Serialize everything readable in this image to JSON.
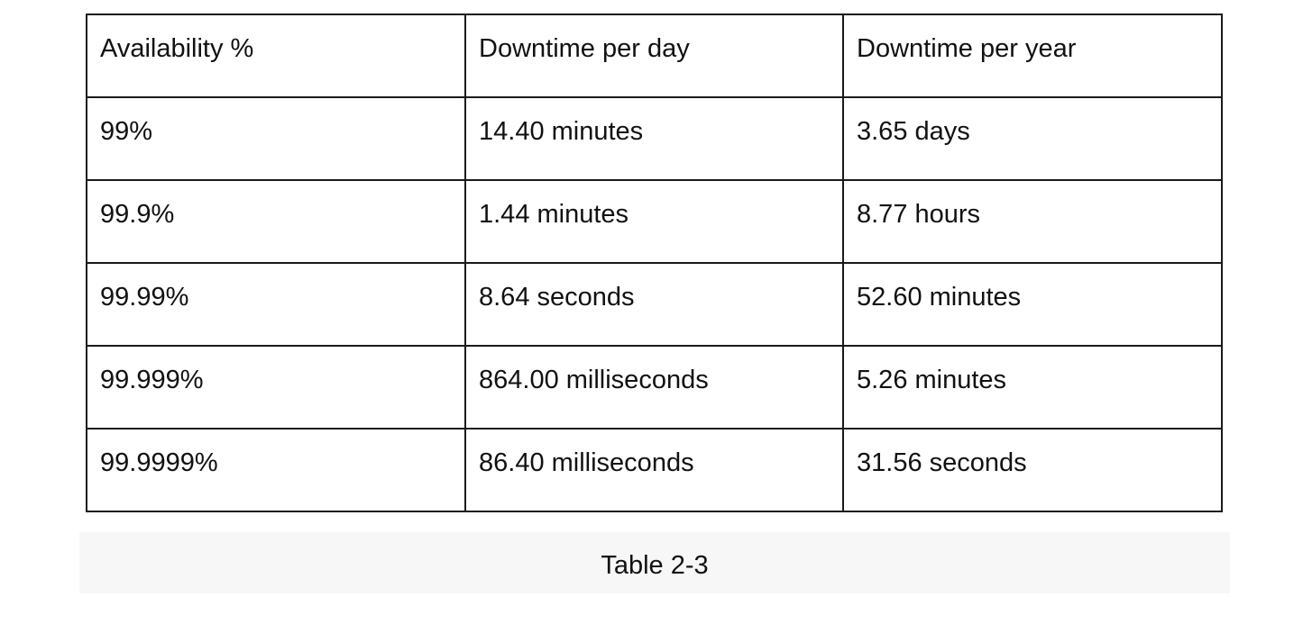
{
  "table": {
    "headers": [
      "Availability %",
      "Downtime per day",
      "Downtime per year"
    ],
    "rows": [
      [
        "99%",
        "14.40 minutes",
        "3.65 days"
      ],
      [
        "99.9%",
        "1.44 minutes",
        "8.77 hours"
      ],
      [
        "99.99%",
        "8.64 seconds",
        "52.60 minutes"
      ],
      [
        "99.999%",
        "864.00 milliseconds",
        "5.26 minutes"
      ],
      [
        "99.9999%",
        "86.40 milliseconds",
        "31.56 seconds"
      ]
    ]
  },
  "caption": "Table 2-3"
}
